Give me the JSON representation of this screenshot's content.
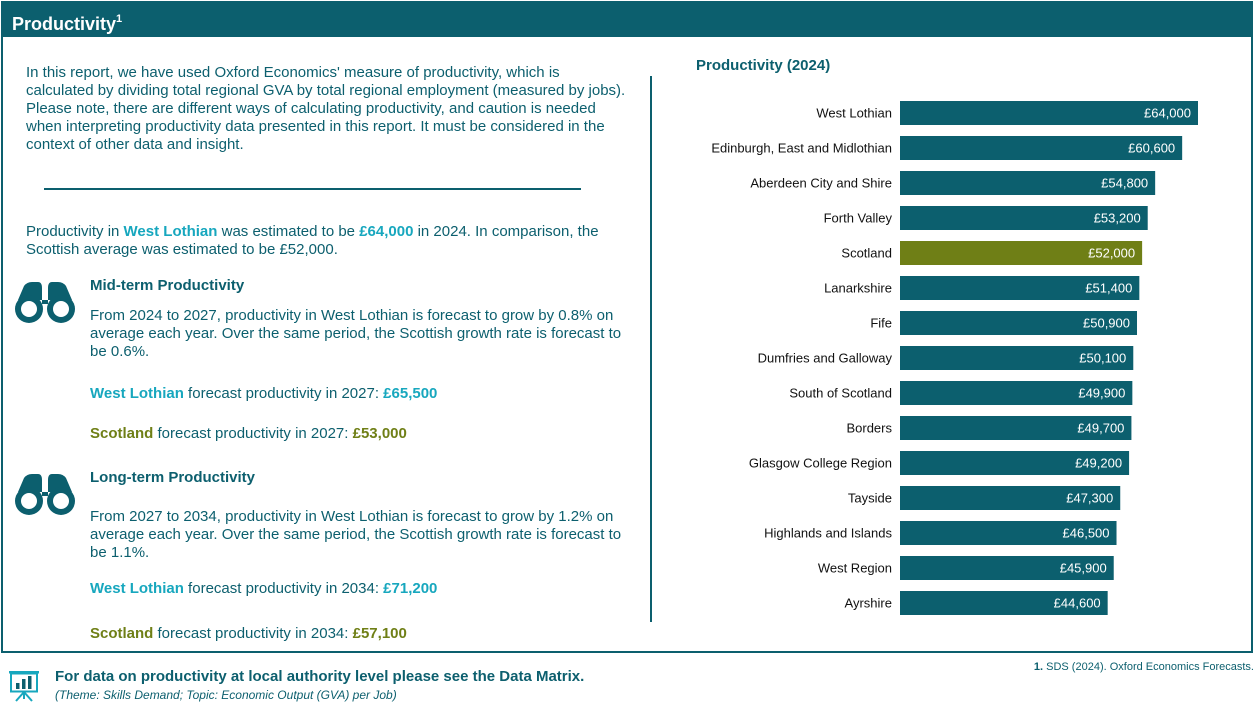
{
  "header": {
    "title": "Productivity",
    "sup": "1"
  },
  "intro": "In this report, we have used Oxford Economics' measure of productivity, which is calculated by dividing total regional GVA by total regional employment (measured by jobs). Please note, there are different ways of calculating productivity, and caution is needed when interpreting productivity data presented in this report. It must be considered in the context of other data and insight.",
  "summary": {
    "p1": "Productivity in ",
    "region": "West Lothian",
    "p2": " was estimated to be ",
    "value": "£64,000",
    "p3": " in 2024. In comparison, the Scottish average was estimated to be £52,000."
  },
  "midterm": {
    "title": "Mid-term Productivity",
    "text": "From 2024 to 2027, productivity in West Lothian is forecast to grow by 0.8% on average each year. Over the same period, the Scottish growth rate is forecast to be 0.6%.",
    "region_label": "West Lothian",
    "region_text": " forecast productivity in 2027: ",
    "region_value": "£65,500",
    "scot_label": "Scotland",
    "scot_text": " forecast productivity in 2027: ",
    "scot_value": "£53,000"
  },
  "longterm": {
    "title": "Long-term Productivity",
    "text": "From 2027 to 2034, productivity in West Lothian is forecast to grow by 1.2% on average each year. Over the same period, the Scottish growth rate is forecast to be 1.1%.",
    "region_label": "West Lothian",
    "region_text": " forecast productivity in 2034: ",
    "region_value": "£71,200",
    "scot_label": "Scotland",
    "scot_text": " forecast productivity in 2034: ",
    "scot_value": "£57,100"
  },
  "icons": {
    "binoculars": "binoculars-icon",
    "presentation": "presentation-chart-icon"
  },
  "colors": {
    "primary": "#0c5f6e",
    "scotland": "#6f7f16",
    "highlight": "#17a7be"
  },
  "chart_data": {
    "type": "bar",
    "orientation": "horizontal",
    "title": "Productivity (2024)",
    "categories": [
      "West Lothian",
      "Edinburgh, East and Midlothian",
      "Aberdeen City and Shire",
      "Forth Valley",
      "Scotland",
      "Lanarkshire",
      "Fife",
      "Dumfries and Galloway",
      "South of Scotland",
      "Borders",
      "Glasgow College Region",
      "Tayside",
      "Highlands and Islands",
      "West Region",
      "Ayrshire"
    ],
    "values": [
      64000,
      60600,
      54800,
      53200,
      52000,
      51400,
      50900,
      50100,
      49900,
      49700,
      49200,
      47300,
      46500,
      45900,
      44600
    ],
    "labels": [
      "£64,000",
      "£60,600",
      "£54,800",
      "£53,200",
      "£52,000",
      "£51,400",
      "£50,900",
      "£50,100",
      "£49,900",
      "£49,700",
      "£49,200",
      "£47,300",
      "£46,500",
      "£45,900",
      "£44,600"
    ],
    "highlight_category": "Scotland",
    "bar_color": "#0c5f6e",
    "highlight_color": "#6f7f16",
    "xlim": [
      0,
      64000
    ]
  },
  "footer": {
    "main": "For data on productivity at local authority level please see the Data Matrix.",
    "sub": "(Theme: Skills Demand; Topic: Economic Output (GVA) per Job)",
    "footnote_num": "1.",
    "footnote_text": " SDS (2024). Oxford Economics Forecasts."
  }
}
